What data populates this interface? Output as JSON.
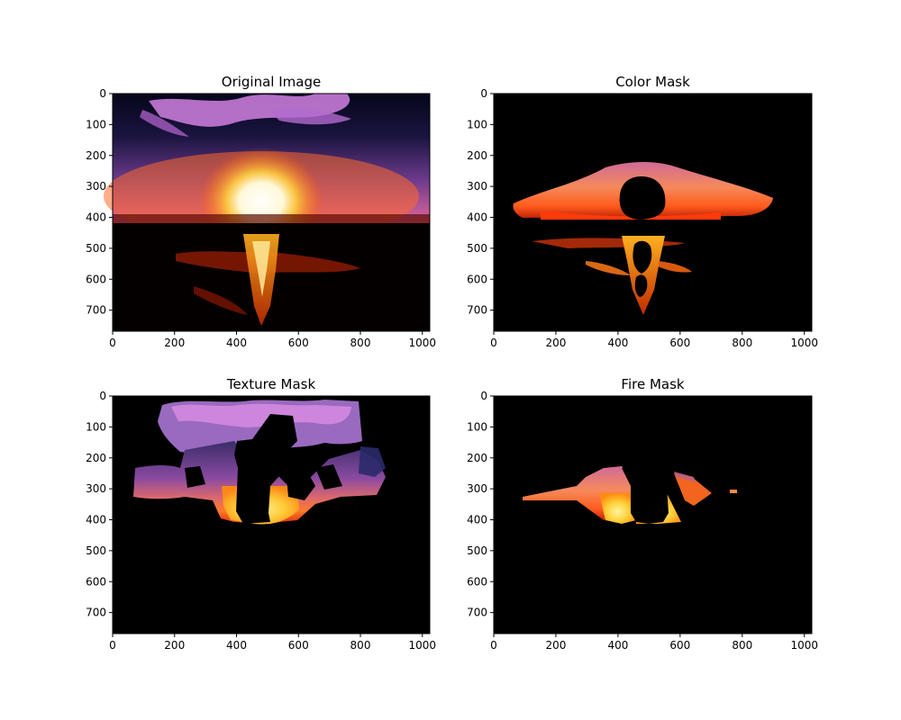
{
  "figure": {
    "background": "#ffffff"
  },
  "chart_data": [
    {
      "type": "image",
      "title": "Original Image",
      "xlim": [
        0,
        1024
      ],
      "ylim": [
        768,
        0
      ],
      "xticks": [
        0,
        200,
        400,
        600,
        800,
        1000
      ],
      "yticks": [
        0,
        100,
        200,
        300,
        400,
        500,
        600,
        700
      ]
    },
    {
      "type": "image",
      "title": "Color Mask",
      "xlim": [
        0,
        1024
      ],
      "ylim": [
        768,
        0
      ],
      "xticks": [
        0,
        200,
        400,
        600,
        800,
        1000
      ],
      "yticks": [
        0,
        100,
        200,
        300,
        400,
        500,
        600,
        700
      ]
    },
    {
      "type": "image",
      "title": "Texture Mask",
      "xlim": [
        0,
        1024
      ],
      "ylim": [
        768,
        0
      ],
      "xticks": [
        0,
        200,
        400,
        600,
        800,
        1000
      ],
      "yticks": [
        0,
        100,
        200,
        300,
        400,
        500,
        600,
        700
      ]
    },
    {
      "type": "image",
      "title": "Fire Mask",
      "xlim": [
        0,
        1024
      ],
      "ylim": [
        768,
        0
      ],
      "xticks": [
        0,
        200,
        400,
        600,
        800,
        1000
      ],
      "yticks": [
        0,
        100,
        200,
        300,
        400,
        500,
        600,
        700
      ]
    }
  ]
}
